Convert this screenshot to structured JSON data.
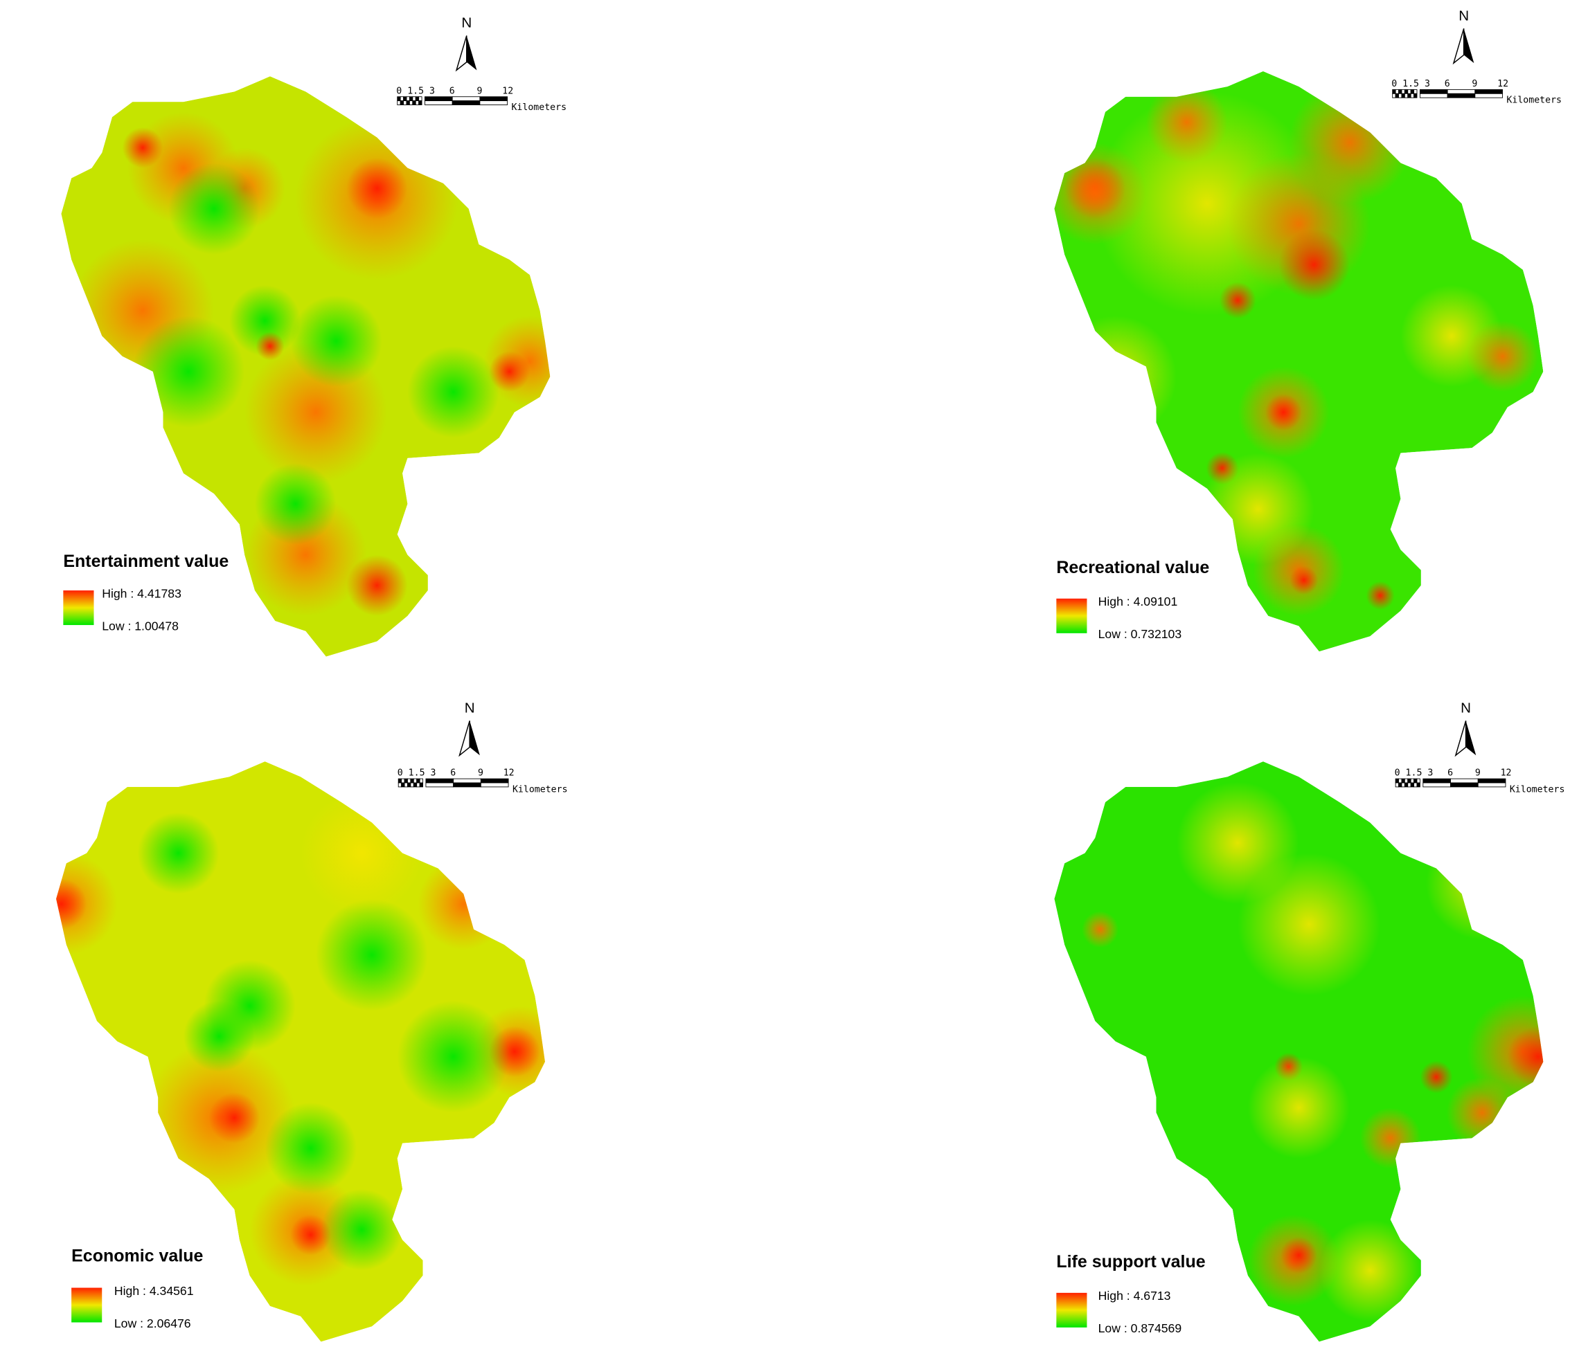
{
  "maps": [
    {
      "title": "Entertainment value",
      "high_label": "High : 4.41783",
      "low_label": "Low : 1.00478",
      "north": "N",
      "scale_labels": [
        "0 1.5 3",
        "6",
        "9",
        "12"
      ],
      "scale_unit": "Kilometers"
    },
    {
      "title": "Recreational value",
      "high_label": "High : 4.09101",
      "low_label": "Low : 0.732103",
      "north": "N",
      "scale_labels": [
        "0 1.5 3",
        "6",
        "9",
        "12"
      ],
      "scale_unit": "Kilometers"
    },
    {
      "title": "Economic value",
      "high_label": "High : 4.34561",
      "low_label": "Low : 2.06476",
      "north": "N",
      "scale_labels": [
        "0 1.5 3",
        "6",
        "9",
        "12"
      ],
      "scale_unit": "Kilometers"
    },
    {
      "title": "Life support value",
      "high_label": "High : 4.6713",
      "low_label": "Low : 0.874569",
      "north": "N",
      "scale_labels": [
        "0 1.5 3",
        "6",
        "9",
        "12"
      ],
      "scale_unit": "Kilometers"
    }
  ]
}
